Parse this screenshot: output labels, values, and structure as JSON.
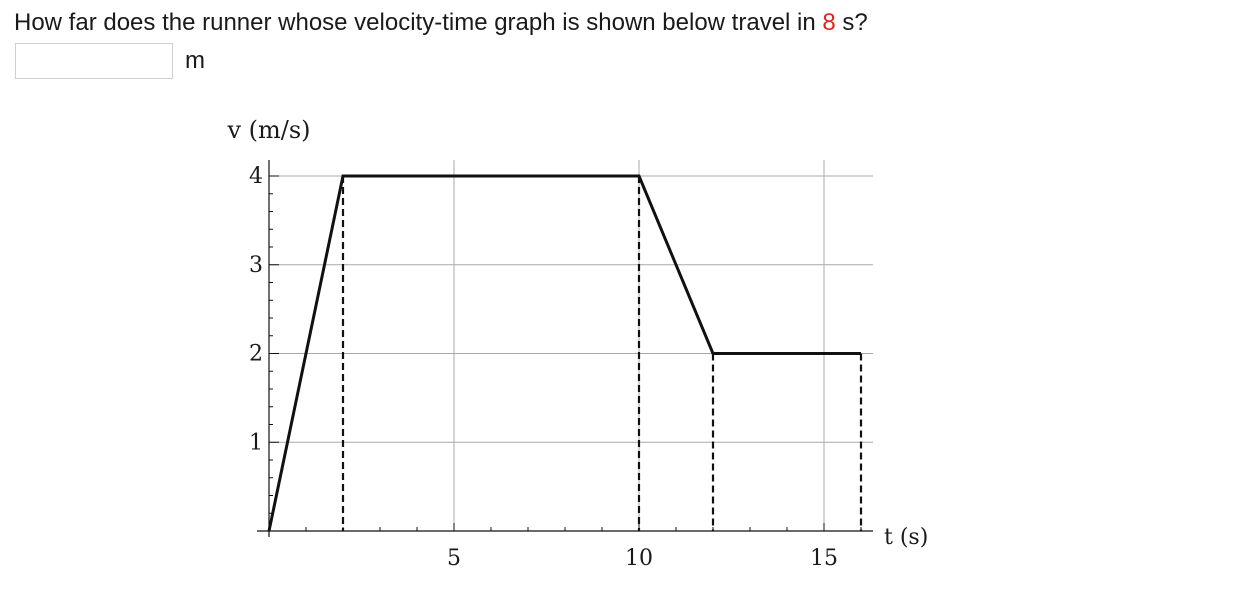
{
  "question": {
    "text_before": "How far does the runner whose velocity-time graph is shown below travel in ",
    "time_value": "8",
    "text_after": " s?",
    "highlight_color": "#e8211c"
  },
  "answer": {
    "value": "",
    "unit": "m"
  },
  "chart_data": {
    "type": "line",
    "ylabel": "v (m/s)",
    "xlabel": "t (s)",
    "xlim": [
      0,
      16
    ],
    "ylim": [
      0,
      4
    ],
    "x_major_ticks": [
      5,
      10,
      15
    ],
    "x_tick_labels": [
      "5",
      "10",
      "15"
    ],
    "y_major_ticks": [
      1,
      2,
      3,
      4
    ],
    "y_tick_labels": [
      "1",
      "2",
      "3",
      "4"
    ],
    "grid": true,
    "series": [
      {
        "x": [
          0,
          2,
          10,
          12,
          16
        ],
        "y": [
          0,
          4,
          4,
          2,
          2
        ]
      }
    ],
    "dashed_verticals": [
      {
        "x": 2,
        "y": 4
      },
      {
        "x": 10,
        "y": 4
      },
      {
        "x": 12,
        "y": 2
      },
      {
        "x": 16,
        "y": 2
      }
    ]
  }
}
